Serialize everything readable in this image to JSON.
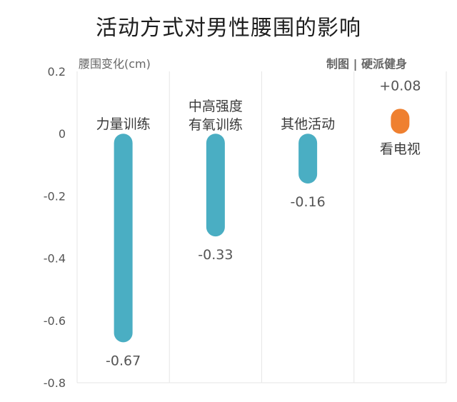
{
  "title": "活动方式对男性腰围的影响",
  "credit": "制图 | 硬派健身",
  "chart_data": {
    "type": "bar",
    "title": "活动方式对男性腰围的影响",
    "ylabel": "腰围变化(cm)",
    "xlabel": "",
    "ylim": [
      -0.8,
      0.2
    ],
    "yticks": [
      "0.2",
      "0",
      "-0.2",
      "-0.4",
      "-0.6",
      "-0.8"
    ],
    "categories": [
      [
        "力量训练"
      ],
      [
        "中高强度",
        "有氧训练"
      ],
      [
        "其他活动"
      ],
      [
        "看电视"
      ]
    ],
    "values": [
      -0.67,
      -0.33,
      -0.16,
      0.08
    ],
    "value_labels": [
      "-0.67",
      "-0.33",
      "-0.16",
      "+0.08"
    ],
    "colors": [
      "#4aaec3",
      "#4aaec3",
      "#4aaec3",
      "#ef8030"
    ],
    "grid": true
  }
}
